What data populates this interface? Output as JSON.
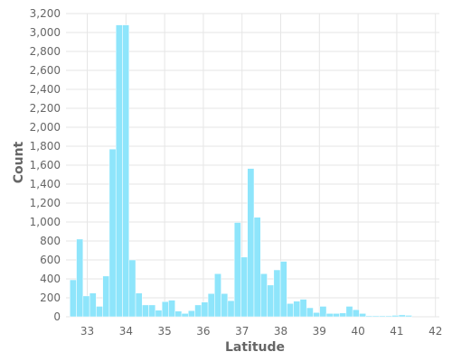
{
  "chart_data": {
    "type": "bar",
    "xlabel": "Latitude",
    "ylabel": "Count",
    "bar_color": "#8ee5fb",
    "grid": true,
    "xlim": [
      32.45,
      42.1
    ],
    "ylim": [
      0,
      3200
    ],
    "xticks": [
      "33",
      "34",
      "35",
      "36",
      "37",
      "38",
      "39",
      "40",
      "41",
      "42"
    ],
    "yticks": [
      "0",
      "200",
      "400",
      "600",
      "800",
      "1,000",
      "1,200",
      "1,400",
      "1,600",
      "1,800",
      "2,000",
      "2,200",
      "2,400",
      "2,600",
      "2,800",
      "3,000",
      "3,200"
    ],
    "bin_width": 0.17,
    "bin_start": 32.55,
    "values": [
      390,
      820,
      220,
      250,
      110,
      430,
      1770,
      3080,
      3080,
      600,
      250,
      125,
      125,
      70,
      160,
      175,
      60,
      35,
      65,
      125,
      155,
      245,
      455,
      245,
      170,
      995,
      630,
      1565,
      1050,
      455,
      335,
      495,
      585,
      140,
      165,
      185,
      95,
      45,
      110,
      35,
      35,
      40,
      110,
      75,
      35,
      10,
      10,
      10,
      10,
      15,
      20,
      15
    ]
  }
}
